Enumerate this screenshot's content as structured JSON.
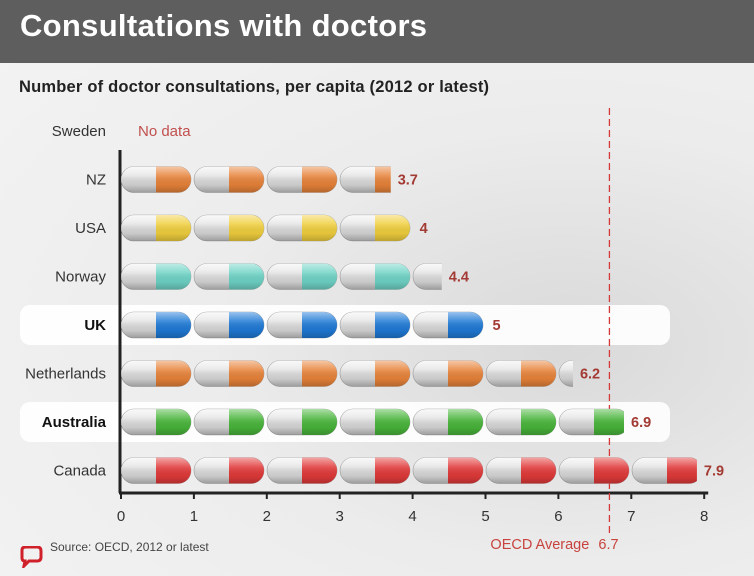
{
  "header": {
    "title": "Consultations with doctors"
  },
  "footer": {
    "source": "Source: OECD, 2012 or latest"
  },
  "colors": {
    "orange": "#e8833a",
    "yellow": "#f0cf3e",
    "teal": "#6fd3c6",
    "blue": "#1f7ad6",
    "green": "#49b53b",
    "red": "#e23a3a",
    "value_text": "#a33a33",
    "average_line": "#d43a3a"
  },
  "chart_data": {
    "type": "bar",
    "title": "Number of doctor consultations, per capita (2012 or latest)",
    "categories": [
      "Sweden",
      "NZ",
      "USA",
      "Norway",
      "UK",
      "Netherlands",
      "Australia",
      "Canada"
    ],
    "values": [
      null,
      3.7,
      4,
      4.4,
      5,
      6.2,
      6.9,
      7.9
    ],
    "value_labels": [
      "No data",
      "3.7",
      "4",
      "4.4",
      "5",
      "6.2",
      "6.9",
      "7.9"
    ],
    "bar_colors": [
      "",
      "orange",
      "yellow",
      "teal",
      "blue",
      "orange",
      "green",
      "red"
    ],
    "highlighted": [
      "UK",
      "Australia"
    ],
    "xlim": [
      0,
      8
    ],
    "xticks": [
      "0",
      "1",
      "2",
      "3",
      "4",
      "5",
      "6",
      "7",
      "8"
    ],
    "reference_line": {
      "label": "OECD Average",
      "value": 6.7,
      "value_label": "6.7"
    },
    "grid": false
  }
}
